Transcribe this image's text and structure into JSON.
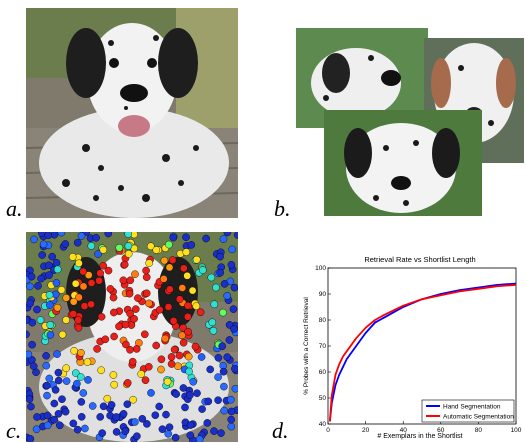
{
  "panels": {
    "a": "a.",
    "b": "b.",
    "c": "c.",
    "d": "d."
  },
  "chart_data": {
    "type": "line",
    "title": "Retrieval Rate vs Shortlist Length",
    "xlabel": "# Exemplars in the Shortlist",
    "ylabel": "% Probes with a Correct Retrieval",
    "xlim": [
      0,
      100
    ],
    "ylim": [
      40,
      100
    ],
    "xticks": [
      0,
      20,
      40,
      60,
      80,
      100
    ],
    "yticks": [
      40,
      50,
      60,
      70,
      80,
      90,
      100
    ],
    "grid": false,
    "legend_position": "bottom-right",
    "series": [
      {
        "name": "Hand Segmentation",
        "color": "#0000ff",
        "x": [
          1,
          2,
          4,
          6,
          8,
          10,
          15,
          20,
          25,
          30,
          40,
          50,
          60,
          70,
          80,
          90,
          100
        ],
        "y": [
          41,
          48,
          55,
          59,
          62,
          65,
          70,
          75,
          79,
          81,
          85,
          88,
          90,
          91.5,
          92.5,
          93.5,
          94
        ]
      },
      {
        "name": "Automatic Segmentation",
        "color": "#ff0000",
        "x": [
          1,
          2,
          4,
          6,
          8,
          10,
          15,
          20,
          25,
          30,
          40,
          50,
          60,
          70,
          80,
          90,
          100
        ],
        "y": [
          41,
          51,
          59,
          63,
          66,
          68,
          73,
          77,
          80,
          82,
          85.5,
          88,
          89.5,
          91,
          92,
          93,
          93.5
        ]
      }
    ]
  }
}
